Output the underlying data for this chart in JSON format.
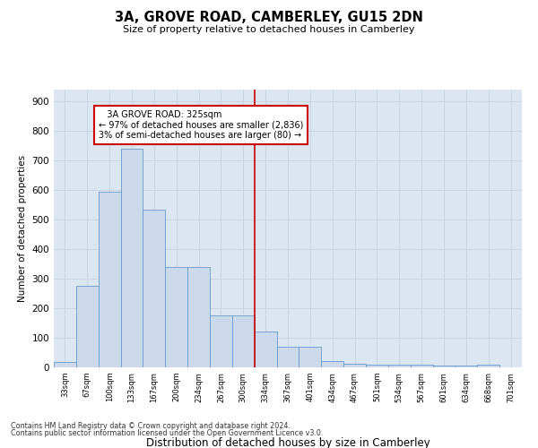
{
  "title": "3A, GROVE ROAD, CAMBERLEY, GU15 2DN",
  "subtitle": "Size of property relative to detached houses in Camberley",
  "xlabel": "Distribution of detached houses by size in Camberley",
  "ylabel": "Number of detached properties",
  "footnote1": "Contains HM Land Registry data © Crown copyright and database right 2024.",
  "footnote2": "Contains public sector information licensed under the Open Government Licence v3.0.",
  "bar_labels": [
    "33sqm",
    "67sqm",
    "100sqm",
    "133sqm",
    "167sqm",
    "200sqm",
    "234sqm",
    "267sqm",
    "300sqm",
    "334sqm",
    "367sqm",
    "401sqm",
    "434sqm",
    "467sqm",
    "501sqm",
    "534sqm",
    "567sqm",
    "601sqm",
    "634sqm",
    "668sqm",
    "701sqm"
  ],
  "bar_values": [
    18,
    275,
    595,
    740,
    535,
    340,
    340,
    177,
    177,
    120,
    70,
    70,
    22,
    12,
    10,
    8,
    8,
    5,
    5,
    8,
    0
  ],
  "bar_color": "#ccd9ea",
  "bar_edge_color": "#6699cc",
  "grid_color": "#c8d4e3",
  "background_color": "#dce6f0",
  "vline_x": 8.5,
  "vline_color": "#cc0000",
  "annotation_line1": "   3A GROVE ROAD: 325sqm",
  "annotation_line2": "← 97% of detached houses are smaller (2,836)",
  "annotation_line3": "3% of semi-detached houses are larger (80) →",
  "annotation_box_color": "#cc0000",
  "ylim": [
    0,
    940
  ],
  "yticks": [
    0,
    100,
    200,
    300,
    400,
    500,
    600,
    700,
    800,
    900
  ]
}
